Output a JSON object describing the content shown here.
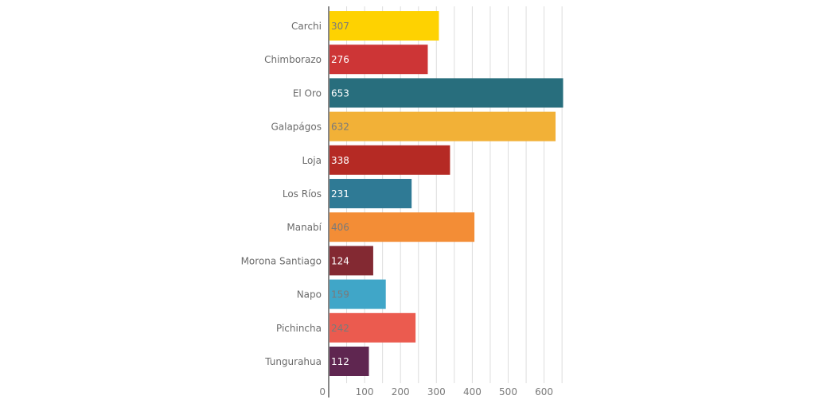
{
  "chart_data": {
    "type": "bar",
    "orientation": "horizontal",
    "categories": [
      "Carchi",
      "Chimborazo",
      "El Oro",
      "Galapágos",
      "Loja",
      "Los Ríos",
      "Manabí",
      "Morona Santiago",
      "Napo",
      "Pichincha",
      "Tungurahua"
    ],
    "values": [
      307,
      276,
      653,
      632,
      338,
      231,
      406,
      124,
      159,
      242,
      112
    ],
    "data_labels": [
      "307",
      "276",
      "653",
      "632",
      "338",
      "231",
      "406",
      "124",
      "159",
      "242",
      "112"
    ],
    "colors": [
      "#fed201",
      "#cd3536",
      "#286e7d",
      "#f2b137",
      "#b52a24",
      "#2f7a95",
      "#f38d36",
      "#832932",
      "#40a6c8",
      "#eb5b4f",
      "#5f2650"
    ],
    "label_colors": [
      "#7a7a7a",
      "#ffffff",
      "#ffffff",
      "#7a7a7a",
      "#ffffff",
      "#ffffff",
      "#7a7a7a",
      "#ffffff",
      "#7a7a7a",
      "#7a7a7a",
      "#ffffff"
    ],
    "xlim": [
      0,
      680
    ],
    "xticks": [
      0,
      100,
      200,
      300,
      400,
      500,
      600
    ],
    "xtick_labels": [
      "0",
      "100",
      "200",
      "300",
      "400",
      "500",
      "600"
    ],
    "minor_grid_step": 50,
    "grid": true,
    "legend": "none",
    "title": "",
    "xlabel": "",
    "ylabel": ""
  }
}
